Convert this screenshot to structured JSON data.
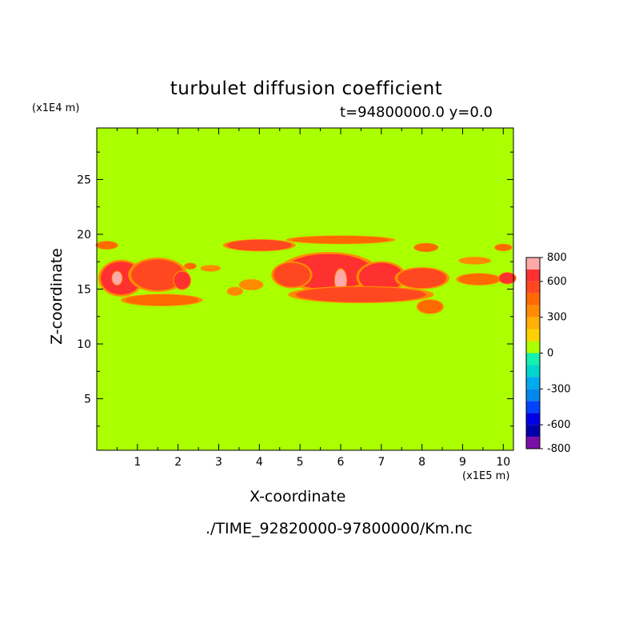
{
  "chart_data": {
    "type": "heatmap",
    "title": "turbulet diffusion coefficient",
    "subtitle": "t=94800000.0 y=0.0",
    "xlabel": "X-coordinate",
    "ylabel": "Z-coordinate",
    "x_unit": "(x1E5 m)",
    "z_unit": "(x1E4 m)",
    "xlim": [
      0,
      10.25
    ],
    "ylim": [
      0.3,
      29.7
    ],
    "x_ticks": [
      "1",
      "2",
      "3",
      "4",
      "5",
      "6",
      "7",
      "8",
      "9",
      "10"
    ],
    "y_ticks": [
      "5",
      "10",
      "15",
      "20",
      "25"
    ],
    "background_level": 0,
    "colorbar": {
      "levels": [
        -800,
        -700,
        -600,
        -500,
        -400,
        -300,
        -200,
        -100,
        0,
        100,
        200,
        300,
        400,
        500,
        600,
        700,
        800
      ],
      "tick_labels": [
        "800",
        "600",
        "300",
        "0",
        "-300",
        "-600",
        "-800"
      ],
      "tick_values": [
        800,
        600,
        300,
        0,
        -300,
        -600,
        -800
      ],
      "colors": [
        "#7a0fa8",
        "#0000aa",
        "#0000e6",
        "#0044ff",
        "#0088ee",
        "#00aaee",
        "#00d6cc",
        "#14f0b0",
        "#aaff00",
        "#ffd000",
        "#ffb000",
        "#ff8c00",
        "#ff6a00",
        "#ff4820",
        "#ff3030",
        "#ffaaaa"
      ]
    },
    "features": [
      {
        "x": 0.6,
        "z": 16.0,
        "rx": 0.5,
        "rz": 1.5,
        "value": 600
      },
      {
        "x": 0.5,
        "z": 16.0,
        "rx": 0.12,
        "rz": 0.6,
        "value": 800
      },
      {
        "x": 1.5,
        "z": 16.3,
        "rx": 0.65,
        "rz": 1.4,
        "value": 550
      },
      {
        "x": 2.1,
        "z": 15.8,
        "rx": 0.2,
        "rz": 0.8,
        "value": 600
      },
      {
        "x": 1.6,
        "z": 14.0,
        "rx": 0.9,
        "rz": 0.5,
        "value": 450
      },
      {
        "x": 2.3,
        "z": 17.1,
        "rx": 0.15,
        "rz": 0.3,
        "value": 400
      },
      {
        "x": 5.7,
        "z": 16.6,
        "rx": 1.1,
        "rz": 1.6,
        "value": 600
      },
      {
        "x": 6.0,
        "z": 15.8,
        "rx": 0.14,
        "rz": 1.0,
        "value": 800
      },
      {
        "x": 4.8,
        "z": 16.3,
        "rx": 0.45,
        "rz": 1.1,
        "value": 550
      },
      {
        "x": 7.0,
        "z": 16.1,
        "rx": 0.55,
        "rz": 1.3,
        "value": 600
      },
      {
        "x": 8.0,
        "z": 16.0,
        "rx": 0.6,
        "rz": 0.9,
        "value": 550
      },
      {
        "x": 9.4,
        "z": 15.9,
        "rx": 0.5,
        "rz": 0.5,
        "value": 450
      },
      {
        "x": 10.1,
        "z": 16.0,
        "rx": 0.2,
        "rz": 0.5,
        "value": 600
      },
      {
        "x": 6.5,
        "z": 14.5,
        "rx": 1.6,
        "rz": 0.7,
        "value": 500
      },
      {
        "x": 8.2,
        "z": 13.4,
        "rx": 0.3,
        "rz": 0.6,
        "value": 450
      },
      {
        "x": 3.8,
        "z": 15.4,
        "rx": 0.3,
        "rz": 0.5,
        "value": 350
      },
      {
        "x": 3.4,
        "z": 14.8,
        "rx": 0.2,
        "rz": 0.4,
        "value": 350
      },
      {
        "x": 0.25,
        "z": 19.0,
        "rx": 0.25,
        "rz": 0.35,
        "value": 450
      },
      {
        "x": 4.0,
        "z": 19.0,
        "rx": 0.8,
        "rz": 0.5,
        "value": 500
      },
      {
        "x": 6.0,
        "z": 19.5,
        "rx": 1.2,
        "rz": 0.35,
        "value": 450
      },
      {
        "x": 8.1,
        "z": 18.8,
        "rx": 0.3,
        "rz": 0.4,
        "value": 400
      },
      {
        "x": 10.0,
        "z": 18.8,
        "rx": 0.2,
        "rz": 0.3,
        "value": 450
      },
      {
        "x": 9.3,
        "z": 17.6,
        "rx": 0.4,
        "rz": 0.35,
        "value": 350
      },
      {
        "x": 2.8,
        "z": 16.9,
        "rx": 0.25,
        "rz": 0.3,
        "value": 350
      }
    ]
  },
  "footer": {
    "file_path": "./TIME_92820000-97800000/Km.nc"
  }
}
